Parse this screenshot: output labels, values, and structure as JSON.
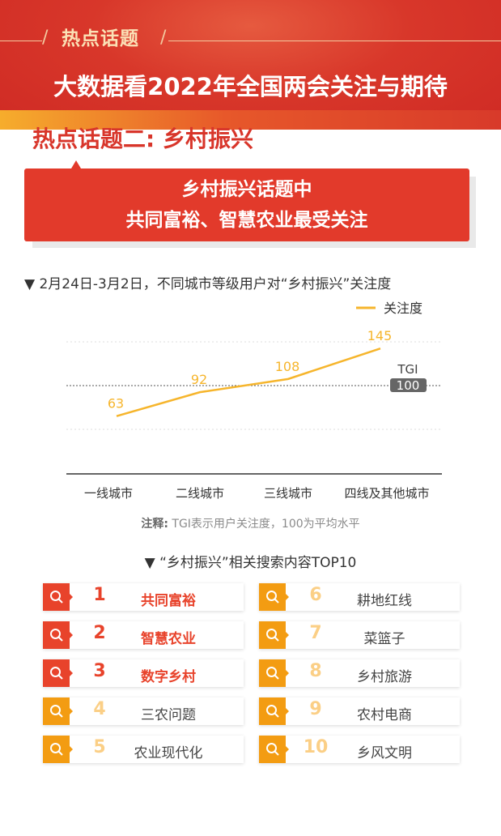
{
  "header": {
    "kicker": "热点话题",
    "title": "大数据看2022年全国两会关注与期待"
  },
  "subtitle": "热点话题二: 乡村振兴",
  "callout": {
    "line1": "乡村振兴话题中",
    "line2": "共同富裕、智慧农业最受关注"
  },
  "chart_section_title": "▼ 2月24日-3月2日，不同城市等级用户对“乡村振兴”关注度",
  "chart_data": {
    "type": "line",
    "categories": [
      "一线城市",
      "二线城市",
      "三线城市",
      "四线及其他城市"
    ],
    "series": [
      {
        "name": "关注度",
        "values": [
          63,
          92,
          108,
          145
        ]
      }
    ],
    "reference": {
      "label": "TGI",
      "value": 100
    },
    "ylim": [
      -7,
      153
    ],
    "legend": "top-right",
    "grid": true,
    "color": "#f6b52c"
  },
  "note": {
    "label": "注释:",
    "text": "TGI表示用户关注度，100为平均水平"
  },
  "top10": {
    "title": "▼  “乡村振兴”相关搜索内容TOP10",
    "items": [
      {
        "rank": "1",
        "label": "共同富裕"
      },
      {
        "rank": "2",
        "label": "智慧农业"
      },
      {
        "rank": "3",
        "label": "数字乡村"
      },
      {
        "rank": "4",
        "label": "三农问题"
      },
      {
        "rank": "5",
        "label": "农业现代化"
      },
      {
        "rank": "6",
        "label": "耕地红线"
      },
      {
        "rank": "7",
        "label": "菜篮子"
      },
      {
        "rank": "8",
        "label": "乡村旅游"
      },
      {
        "rank": "9",
        "label": "农村电商"
      },
      {
        "rank": "10",
        "label": "乡风文明"
      }
    ],
    "colors": {
      "top": "#e8432b",
      "rest": "#f39c12",
      "rest_rank": "#fbcf86"
    }
  }
}
